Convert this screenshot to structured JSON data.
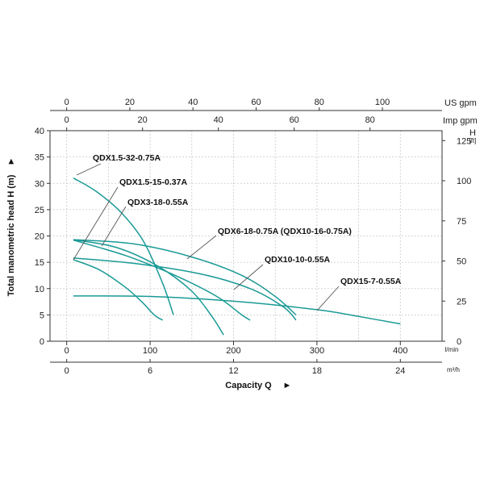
{
  "chart_data": {
    "type": "line",
    "title": "",
    "ylabel": "Total manometric head H (m)",
    "xlabel": "Capacity Q",
    "arrow_glyph": "►",
    "grid": true,
    "line_color": "#1a9a96",
    "axes": {
      "left": {
        "unit": "",
        "ticks": [
          0,
          5,
          10,
          15,
          20,
          25,
          30,
          35,
          40
        ],
        "range": [
          0,
          40
        ]
      },
      "right": {
        "unit": "H",
        "unit_sub": "[ft]",
        "ticks": [
          0,
          25,
          50,
          75,
          100,
          125
        ],
        "range": [
          0,
          131.2
        ]
      },
      "bottom1": {
        "unit": "l/min",
        "ticks": [
          0,
          100,
          200,
          300,
          400
        ],
        "range": [
          -20,
          450
        ]
      },
      "bottom2": {
        "unit": "m³/h",
        "ticks": [
          0,
          6,
          12,
          18,
          24
        ],
        "range": [
          -1.2,
          27
        ]
      },
      "top1": {
        "unit": "US gpm",
        "ticks": [
          0,
          20,
          40,
          60,
          80,
          100
        ],
        "range": [
          -5.28,
          118.9
        ]
      },
      "top2": {
        "unit": "Imp gpm",
        "ticks": [
          0,
          20,
          40,
          60,
          80
        ],
        "range": [
          -4.4,
          99
        ]
      }
    },
    "series": [
      {
        "name": "QDX1.5-32-0.75A",
        "x": [
          8,
          35,
          65,
          92,
          115,
          128
        ],
        "y": [
          31,
          28.5,
          24.5,
          19,
          11,
          5
        ]
      },
      {
        "name": "QDX1.5-15-0.37A",
        "x": [
          8,
          40,
          70,
          90,
          105,
          115
        ],
        "y": [
          15.5,
          13.5,
          10.3,
          7.5,
          5,
          4
        ]
      },
      {
        "name": "QDX3-18-0.55A",
        "x": [
          8,
          60,
          110,
          150,
          175,
          188
        ],
        "y": [
          19.3,
          17.8,
          14.2,
          9.5,
          4.5,
          1.2
        ]
      },
      {
        "name": "QDX6-18-0.75A (QDX10-16-0.75A)",
        "x": [
          8,
          80,
          150,
          210,
          250,
          275
        ],
        "y": [
          19.3,
          18.5,
          16,
          12.5,
          8.5,
          5
        ]
      },
      {
        "name": "",
        "x": [
          8,
          70,
          130,
          180,
          210,
          220
        ],
        "y": [
          19.2,
          16.3,
          12.5,
          8.5,
          5,
          4
        ]
      },
      {
        "name": "QDX10-10-0.55A",
        "x": [
          8,
          80,
          160,
          220,
          260,
          275
        ],
        "y": [
          15.8,
          14.8,
          12.8,
          10,
          6.5,
          4
        ]
      },
      {
        "name": "QDX15-7-0.55A",
        "x": [
          8,
          100,
          200,
          300,
          350,
          400
        ],
        "y": [
          8.6,
          8.5,
          7.6,
          6,
          4.7,
          3.3
        ]
      }
    ],
    "labels": [
      {
        "series": 0,
        "text": "QDX1.5-32-0.75A"
      },
      {
        "series": 1,
        "text": "QDX1.5-15-0.37A"
      },
      {
        "series": 2,
        "text": "QDX3-18-0.55A"
      },
      {
        "series": 3,
        "text": "QDX6-18-0.75A (QDX10-16-0.75A)"
      },
      {
        "series": 5,
        "text": "QDX10-10-0.55A"
      },
      {
        "series": 6,
        "text": "QDX15-7-0.55A"
      }
    ]
  }
}
